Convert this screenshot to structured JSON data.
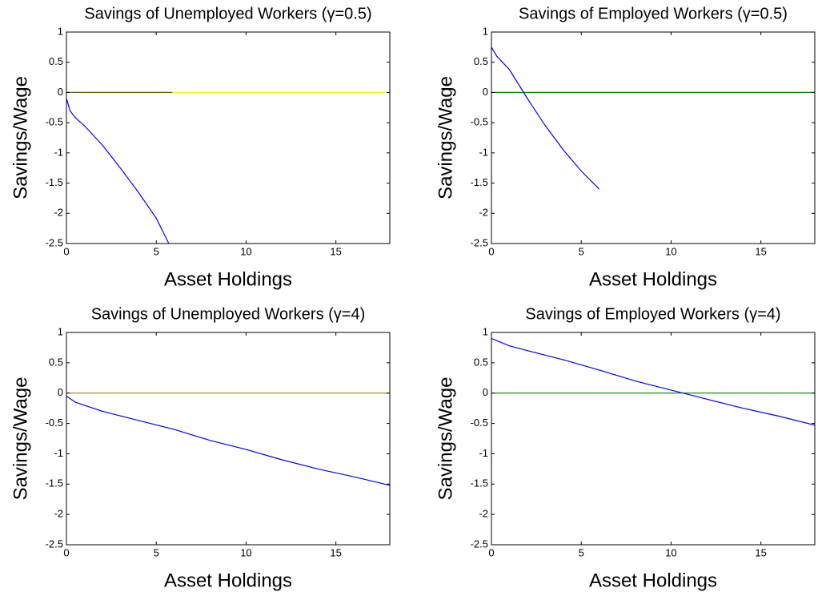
{
  "chart_data": [
    {
      "type": "line",
      "title": "Savings of Unemployed Workers (γ=0.5)",
      "x_label": "Asset Holdings",
      "y_label": "Savings/Wage",
      "xlim": [
        0,
        18
      ],
      "ylim": [
        -2.5,
        1
      ],
      "xticks": [
        0,
        5,
        10,
        15
      ],
      "yticks": [
        -2.5,
        -2,
        -1.5,
        -1,
        -0.5,
        0,
        0.5,
        1
      ],
      "series": [
        {
          "color": "#ffff00",
          "x": [
            0,
            18
          ],
          "values": [
            0,
            0
          ]
        },
        {
          "color": "#606000",
          "x": [
            0,
            5.9
          ],
          "values": [
            0,
            0
          ]
        },
        {
          "color": "#0000ff",
          "x": [
            0,
            0.2,
            0.5,
            1,
            2,
            3,
            4,
            5,
            5.7
          ],
          "values": [
            -0.1,
            -0.3,
            -0.42,
            -0.55,
            -0.87,
            -1.25,
            -1.65,
            -2.08,
            -2.5
          ]
        }
      ]
    },
    {
      "type": "line",
      "title": "Savings of Employed Workers (γ=0.5)",
      "x_label": "Asset Holdings",
      "y_label": "Savings/Wage",
      "xlim": [
        0,
        18
      ],
      "ylim": [
        -2.5,
        1
      ],
      "xticks": [
        0,
        5,
        10,
        15
      ],
      "yticks": [
        -2.5,
        -2,
        -1.5,
        -1,
        -0.5,
        0,
        0.5,
        1
      ],
      "series": [
        {
          "color": "#008000",
          "x": [
            0,
            18
          ],
          "values": [
            0,
            0
          ]
        },
        {
          "color": "#0000ff",
          "x": [
            0,
            0.3,
            1,
            2,
            3,
            4,
            5,
            6
          ],
          "values": [
            0.75,
            0.6,
            0.38,
            -0.1,
            -0.55,
            -0.95,
            -1.3,
            -1.6
          ]
        }
      ]
    },
    {
      "type": "line",
      "title": "Savings of Unemployed Workers (γ=4)",
      "x_label": "Asset Holdings",
      "y_label": "Savings/Wage",
      "xlim": [
        0,
        18
      ],
      "ylim": [
        -2.5,
        1
      ],
      "xticks": [
        0,
        5,
        10,
        15
      ],
      "yticks": [
        -2.5,
        -2,
        -1.5,
        -1,
        -0.5,
        0,
        0.5,
        1
      ],
      "series": [
        {
          "color": "#a08020",
          "x": [
            0,
            18
          ],
          "values": [
            0,
            0
          ]
        },
        {
          "color": "#0000ff",
          "x": [
            0,
            0.5,
            1,
            2,
            4,
            6,
            8,
            10,
            12,
            14,
            16,
            18
          ],
          "values": [
            -0.05,
            -0.15,
            -0.2,
            -0.3,
            -0.45,
            -0.6,
            -0.78,
            -0.93,
            -1.1,
            -1.25,
            -1.38,
            -1.52
          ]
        }
      ]
    },
    {
      "type": "line",
      "title": "Savings of Employed Workers (γ=4)",
      "x_label": "Asset Holdings",
      "y_label": "Savings/Wage",
      "xlim": [
        0,
        18
      ],
      "ylim": [
        -2.5,
        1
      ],
      "xticks": [
        0,
        5,
        10,
        15
      ],
      "yticks": [
        -2.5,
        -2,
        -1.5,
        -1,
        -0.5,
        0,
        0.5,
        1
      ],
      "series": [
        {
          "color": "#008000",
          "x": [
            0,
            18
          ],
          "values": [
            0,
            0
          ]
        },
        {
          "color": "#0000ff",
          "x": [
            0,
            1,
            2,
            4,
            6,
            8,
            10,
            12,
            14,
            16,
            18
          ],
          "values": [
            0.9,
            0.78,
            0.7,
            0.55,
            0.38,
            0.2,
            0.05,
            -0.1,
            -0.25,
            -0.38,
            -0.53
          ]
        }
      ]
    }
  ]
}
